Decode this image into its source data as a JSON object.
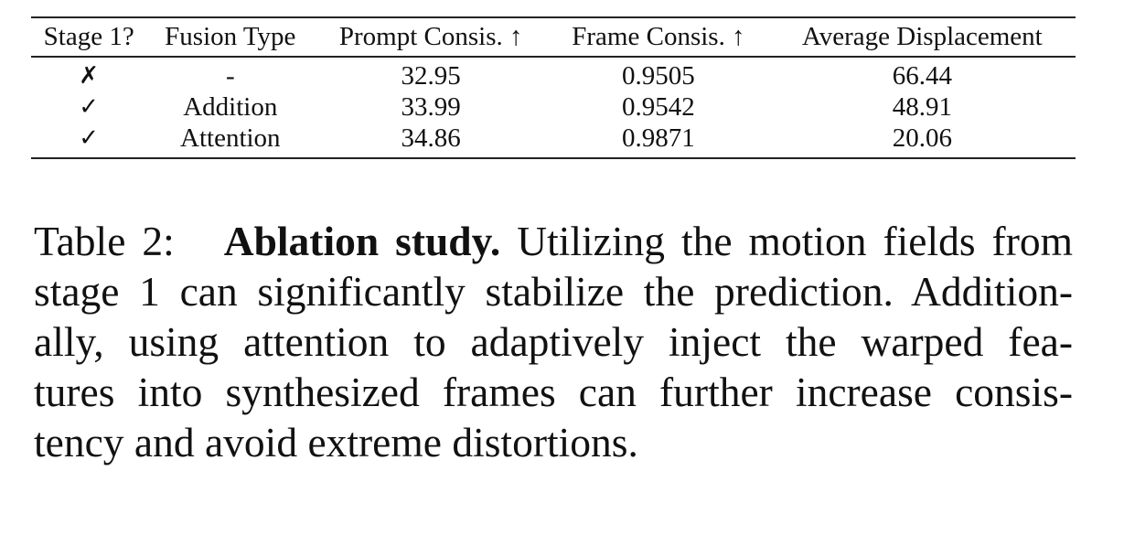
{
  "table": {
    "headers": [
      "Stage 1?",
      "Fusion Type",
      "Prompt Consis. ↑",
      "Frame Consis. ↑",
      "Average Displacement"
    ],
    "rows": [
      [
        "✗",
        "-",
        "32.95",
        "0.9505",
        "66.44"
      ],
      [
        "✓",
        "Addition",
        "33.99",
        "0.9542",
        "48.91"
      ],
      [
        "✓",
        "Attention",
        "34.86",
        "0.9871",
        "20.06"
      ]
    ]
  },
  "caption": {
    "label": "Table 2:",
    "bold": "Ablation study.",
    "lines": [
      "Utilizing the motion fields from",
      "stage 1 can significantly stabilize the prediction. Addition-",
      "ally, using attention to adaptively inject the warped fea-",
      "tures into synthesized frames can further increase consis-",
      "tency and avoid extreme distortions."
    ]
  }
}
